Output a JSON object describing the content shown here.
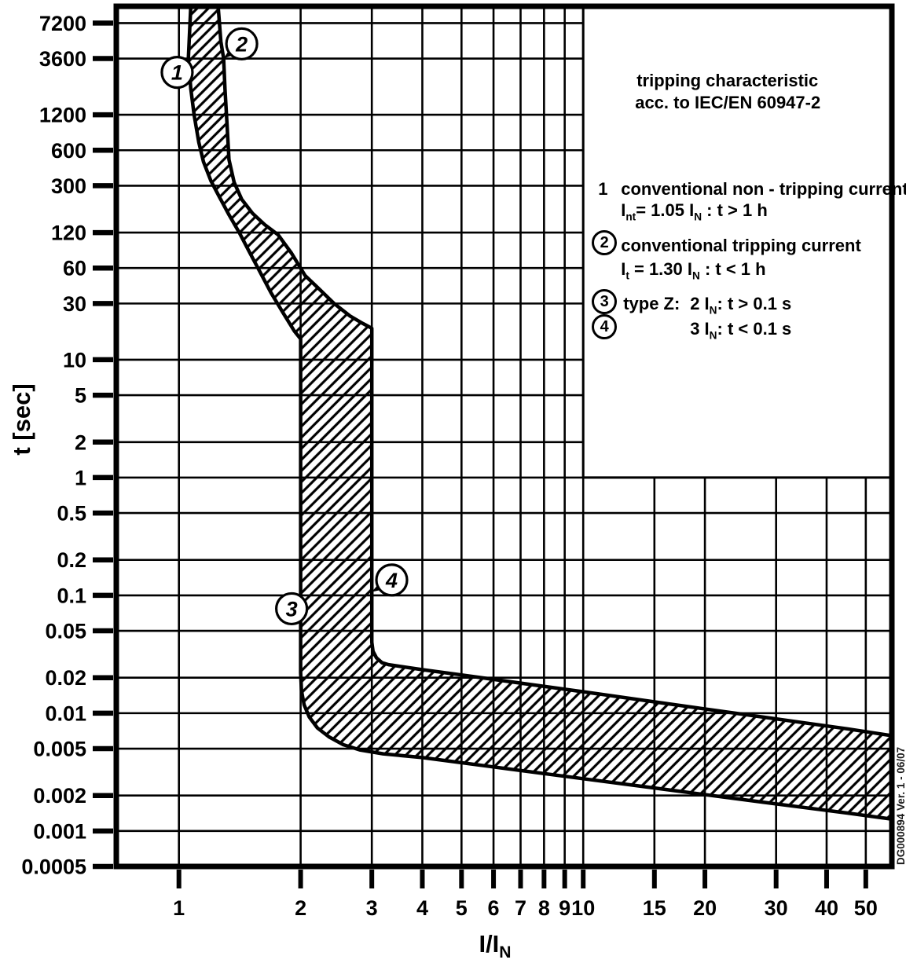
{
  "page": {
    "background": "#ffffff",
    "ink": "#000000"
  },
  "chart_data": {
    "type": "area",
    "title": "tripping characteristic",
    "subtitle": "acc. to IEC/EN 60947-2",
    "xlabel": "I/I_{N}",
    "ylabel": "t [sec]",
    "x_scale": "log",
    "y_scale": "log",
    "xlim": [
      0.7,
      58
    ],
    "ylim": [
      0.0005,
      10000
    ],
    "grid": "on",
    "x_ticks": {
      "values": [
        1,
        2,
        3,
        4,
        5,
        6,
        7,
        8,
        9,
        10,
        15,
        20,
        30,
        40,
        50
      ],
      "labels": [
        "1",
        "2",
        "3",
        "4",
        "5",
        "6",
        "7",
        "8",
        "9",
        "10",
        "15",
        "20",
        "30",
        "40",
        "50"
      ]
    },
    "y_ticks": {
      "values": [
        7200,
        3600,
        1200,
        600,
        300,
        120,
        60,
        30,
        10,
        5,
        2,
        1,
        0.5,
        0.2,
        0.1,
        0.05,
        0.02,
        0.01,
        0.005,
        0.002,
        0.001,
        0.0005
      ],
      "labels": [
        "7200",
        "3600",
        "1200",
        "600",
        "300",
        "120",
        "60",
        "30",
        "10",
        "5",
        "2",
        "1",
        "0.5",
        "0.2",
        "0.1",
        "0.05",
        "0.02",
        "0.01",
        "0.005",
        "0.002",
        "0.001",
        "0.0005"
      ]
    },
    "legend_position": "top-right",
    "legend_cutout": {
      "x_min": 10,
      "y_min": 1
    },
    "band": {
      "name": "tripping-band",
      "hatch": "diagonal-forward",
      "left_boundary": [
        [
          1.07,
          10000
        ],
        [
          1.06,
          5000
        ],
        [
          1.055,
          3600
        ],
        [
          1.07,
          2000
        ],
        [
          1.09,
          1200
        ],
        [
          1.12,
          700
        ],
        [
          1.15,
          480
        ],
        [
          1.2,
          330
        ],
        [
          1.26,
          240
        ],
        [
          1.33,
          170
        ],
        [
          1.41,
          120
        ],
        [
          1.5,
          80
        ],
        [
          1.59,
          55
        ],
        [
          1.69,
          37
        ],
        [
          1.81,
          25
        ],
        [
          1.93,
          17.5
        ],
        [
          2.0,
          15
        ],
        [
          2.0,
          0.022
        ],
        [
          2.01,
          0.0155
        ],
        [
          2.04,
          0.0118
        ],
        [
          2.1,
          0.0093
        ],
        [
          2.2,
          0.0075
        ],
        [
          2.35,
          0.0063
        ],
        [
          2.55,
          0.0054
        ],
        [
          2.8,
          0.00488
        ],
        [
          3.2,
          0.00452
        ],
        [
          4.0,
          0.0042
        ],
        [
          6.0,
          0.0035
        ],
        [
          10,
          0.00278
        ],
        [
          16,
          0.00225
        ],
        [
          28,
          0.00175
        ],
        [
          45,
          0.00142
        ],
        [
          58,
          0.00126
        ]
      ],
      "right_boundary": [
        [
          1.25,
          10000
        ],
        [
          1.27,
          5000
        ],
        [
          1.29,
          3600
        ],
        [
          1.3,
          2000
        ],
        [
          1.315,
          1000
        ],
        [
          1.33,
          500
        ],
        [
          1.37,
          320
        ],
        [
          1.43,
          230
        ],
        [
          1.52,
          175
        ],
        [
          1.63,
          140
        ],
        [
          1.76,
          115
        ],
        [
          1.9,
          80
        ],
        [
          2.05,
          52
        ],
        [
          2.22,
          40
        ],
        [
          2.42,
          30
        ],
        [
          2.65,
          23.5
        ],
        [
          2.85,
          20.3
        ],
        [
          3.0,
          18.5
        ],
        [
          3.0,
          0.04
        ],
        [
          3.02,
          0.0335
        ],
        [
          3.08,
          0.0295
        ],
        [
          3.18,
          0.0268
        ],
        [
          3.3,
          0.0258
        ],
        [
          4.0,
          0.0234
        ],
        [
          5.0,
          0.0211
        ],
        [
          7.0,
          0.018
        ],
        [
          10,
          0.0152
        ],
        [
          16,
          0.0121
        ],
        [
          28,
          0.00924
        ],
        [
          45,
          0.00736
        ],
        [
          58,
          0.00644
        ]
      ]
    },
    "markers": [
      {
        "label": "1",
        "circle_at": [
          0.99,
          2750
        ],
        "points_to": [
          1.06,
          3600
        ]
      },
      {
        "label": "2",
        "circle_at": [
          1.43,
          4800
        ],
        "points_to": [
          1.29,
          3600
        ]
      },
      {
        "label": "3",
        "circle_at": [
          1.9,
          0.077
        ],
        "points_to": [
          2.0,
          0.1
        ]
      },
      {
        "label": "4",
        "circle_at": [
          3.36,
          0.135
        ],
        "points_to": [
          3.0,
          0.107
        ]
      }
    ]
  },
  "legend": {
    "items": [
      {
        "num": "1",
        "circled": false,
        "text": "conventional non - tripping current",
        "formula": "I_{nt}= 1.05 I_{N} : t > 1 h"
      },
      {
        "num": "2",
        "circled": true,
        "text": "conventional tripping current",
        "formula": "I_{t} = 1.30 I_{N} : t < 1 h"
      },
      {
        "num": "3",
        "circled": true,
        "prefix": "type Z:",
        "text": "2 I_{N}: t > 0.1 s"
      },
      {
        "num": "4",
        "circled": true,
        "text": "3 I_{N}: t < 0.1 s"
      }
    ]
  },
  "axes": {
    "x_title": "I/I_{N}",
    "y_title": "t [sec]"
  },
  "watermark": "DG000894 Ver. 1 - 06/07"
}
